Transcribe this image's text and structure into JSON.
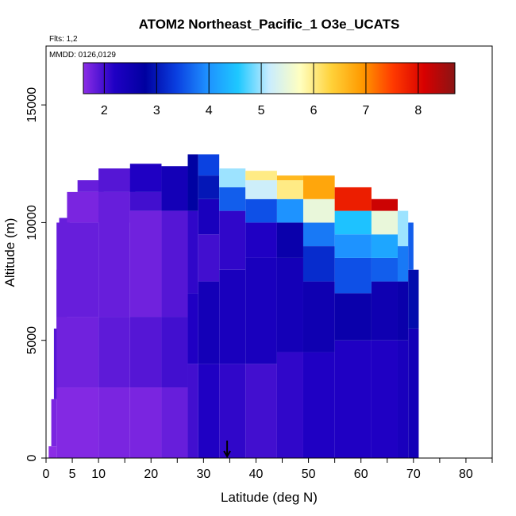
{
  "chart_data": {
    "type": "heatmap",
    "title": "ATOM2 Northeast_Pacific_1 O3e_UCATS",
    "flights_label": "Flts: 1,2",
    "dates_label": "MMDD: 0126,0129",
    "xlabel": "Latitude (deg N)",
    "ylabel": "Altitude (m)",
    "xlim": [
      0,
      85
    ],
    "ylim": [
      0,
      17500
    ],
    "x_ticks": [
      0,
      5,
      10,
      20,
      30,
      40,
      50,
      60,
      70,
      80
    ],
    "x_minor_ticks": [
      15,
      25,
      35,
      45,
      55,
      65,
      75,
      85
    ],
    "y_ticks": [
      0,
      5000,
      10000,
      15000
    ],
    "grid": false,
    "marker_latitude": 34.5,
    "colorbar": {
      "range": [
        1.6,
        8.7
      ],
      "ticks": [
        2,
        3,
        4,
        5,
        6,
        7,
        8
      ],
      "colors": [
        "#8c2de6",
        "#1f00c4",
        "#0000a0",
        "#0a3fe0",
        "#1e90ff",
        "#1ec8ff",
        "#c8ecff",
        "#ffffc0",
        "#ffd23a",
        "#ff9a00",
        "#ff3a00",
        "#d80000",
        "#8a1414"
      ]
    },
    "series": [
      {
        "name": "O3e_UCATS",
        "columns": [
          {
            "x": [
              0.5,
              2
            ],
            "top": 500,
            "layers": [
              [
                0,
                500,
                1.6
              ]
            ]
          },
          {
            "x": [
              1,
              2
            ],
            "top": 2500,
            "layers": [
              [
                500,
                2500,
                1.7
              ]
            ]
          },
          {
            "x": [
              1.5,
              2.5
            ],
            "top": 5500,
            "layers": [
              [
                2500,
                5500,
                1.9
              ]
            ]
          },
          {
            "x": [
              2,
              4
            ],
            "top": 8000,
            "layers": [
              [
                5500,
                8000,
                1.8
              ]
            ]
          },
          {
            "x": [
              2.5,
              4.5
            ],
            "top": 10200,
            "layers": [
              [
                8000,
                10200,
                1.8
              ]
            ]
          },
          {
            "x": [
              4,
              16
            ],
            "top": 11300,
            "layers": [
              [
                10000,
                11300,
                1.7
              ]
            ]
          },
          {
            "x": [
              2,
              10
            ],
            "top": 10000,
            "layers": [
              [
                0,
                3000,
                1.65
              ],
              [
                3000,
                6000,
                1.75
              ],
              [
                6000,
                10000,
                1.8
              ]
            ]
          },
          {
            "x": [
              10,
              16
            ],
            "top": 11300,
            "layers": [
              [
                0,
                3000,
                1.7
              ],
              [
                3000,
                6000,
                1.85
              ],
              [
                6000,
                11300,
                1.8
              ]
            ]
          },
          {
            "x": [
              6,
              11
            ],
            "top": 11800,
            "layers": [
              [
                11300,
                11800,
                1.8
              ]
            ]
          },
          {
            "x": [
              10,
              17
            ],
            "top": 12300,
            "layers": [
              [
                11300,
                12300,
                1.9
              ]
            ]
          },
          {
            "x": [
              16,
              22
            ],
            "top": 11300,
            "layers": [
              [
                0,
                3000,
                1.7
              ],
              [
                3000,
                6000,
                1.9
              ],
              [
                6000,
                10500,
                1.75
              ],
              [
                10500,
                11300,
                2.0
              ]
            ]
          },
          {
            "x": [
              16,
              22
            ],
            "top": 12500,
            "layers": [
              [
                11300,
                12500,
                2.2
              ]
            ]
          },
          {
            "x": [
              22,
              27
            ],
            "top": 10500,
            "layers": [
              [
                0,
                3000,
                1.8
              ],
              [
                3000,
                6000,
                2.0
              ],
              [
                6000,
                10500,
                1.9
              ]
            ]
          },
          {
            "x": [
              22,
              27
            ],
            "top": 12400,
            "layers": [
              [
                10500,
                12400,
                2.4
              ]
            ]
          },
          {
            "x": [
              27,
              29
            ],
            "top": 12900,
            "layers": [
              [
                0,
                4000,
                2.0
              ],
              [
                4000,
                7000,
                2.2
              ],
              [
                7000,
                10500,
                2.1
              ],
              [
                10500,
                12900,
                2.8
              ]
            ]
          },
          {
            "x": [
              29,
              33
            ],
            "top": 12900,
            "layers": [
              [
                0,
                4000,
                2.2
              ],
              [
                4000,
                7500,
                2.4
              ],
              [
                7500,
                9500,
                2.0
              ],
              [
                9500,
                11000,
                2.3
              ],
              [
                11000,
                12000,
                3.0
              ],
              [
                12000,
                12900,
                3.4
              ]
            ]
          },
          {
            "x": [
              33,
              38
            ],
            "top": 12300,
            "layers": [
              [
                0,
                4000,
                2.1
              ],
              [
                4000,
                8000,
                2.3
              ],
              [
                8000,
                10500,
                2.1
              ],
              [
                10500,
                11500,
                3.6
              ],
              [
                11500,
                12300,
                5.0
              ]
            ]
          },
          {
            "x": [
              38,
              44
            ],
            "top": 12200,
            "layers": [
              [
                0,
                4000,
                2.0
              ],
              [
                4000,
                8500,
                2.3
              ],
              [
                8500,
                10000,
                2.2
              ],
              [
                10000,
                11000,
                3.5
              ],
              [
                11000,
                11800,
                5.2
              ],
              [
                11800,
                12200,
                6.0
              ]
            ]
          },
          {
            "x": [
              44,
              49
            ],
            "top": 12000,
            "layers": [
              [
                0,
                4500,
                2.1
              ],
              [
                4500,
                8500,
                2.4
              ],
              [
                8500,
                10000,
                2.6
              ],
              [
                10000,
                11000,
                4.0
              ],
              [
                11000,
                11800,
                6.0
              ],
              [
                11800,
                12000,
                6.6
              ]
            ]
          },
          {
            "x": [
              49,
              55
            ],
            "top": 12000,
            "layers": [
              [
                0,
                4500,
                2.2
              ],
              [
                4500,
                7500,
                2.5
              ],
              [
                7500,
                9000,
                3.2
              ],
              [
                9000,
                10000,
                3.8
              ],
              [
                10000,
                11000,
                5.5
              ],
              [
                11000,
                12000,
                6.8
              ]
            ]
          },
          {
            "x": [
              55,
              62
            ],
            "top": 11500,
            "layers": [
              [
                0,
                5000,
                2.2
              ],
              [
                5000,
                7000,
                2.6
              ],
              [
                7000,
                8500,
                3.5
              ],
              [
                8500,
                9500,
                4.0
              ],
              [
                9500,
                10500,
                4.5
              ],
              [
                10500,
                11500,
                7.8
              ]
            ]
          },
          {
            "x": [
              62,
              67
            ],
            "top": 11000,
            "layers": [
              [
                0,
                5000,
                2.2
              ],
              [
                5000,
                7500,
                2.5
              ],
              [
                7500,
                8500,
                3.6
              ],
              [
                8500,
                9500,
                4.2
              ],
              [
                9500,
                10500,
                5.5
              ],
              [
                10500,
                11000,
                8.2
              ]
            ]
          },
          {
            "x": [
              67,
              69
            ],
            "top": 10500,
            "layers": [
              [
                0,
                5000,
                2.3
              ],
              [
                5000,
                7500,
                2.6
              ],
              [
                7500,
                9000,
                3.8
              ],
              [
                9000,
                10500,
                5.0
              ]
            ]
          },
          {
            "x": [
              69,
              71
            ],
            "top": 8000,
            "layers": [
              [
                0,
                5500,
                2.4
              ],
              [
                5500,
                8000,
                2.9
              ]
            ]
          },
          {
            "x": [
              69,
              70
            ],
            "top": 10000,
            "layers": [
              [
                8000,
                10000,
                3.6
              ]
            ]
          }
        ]
      }
    ]
  }
}
